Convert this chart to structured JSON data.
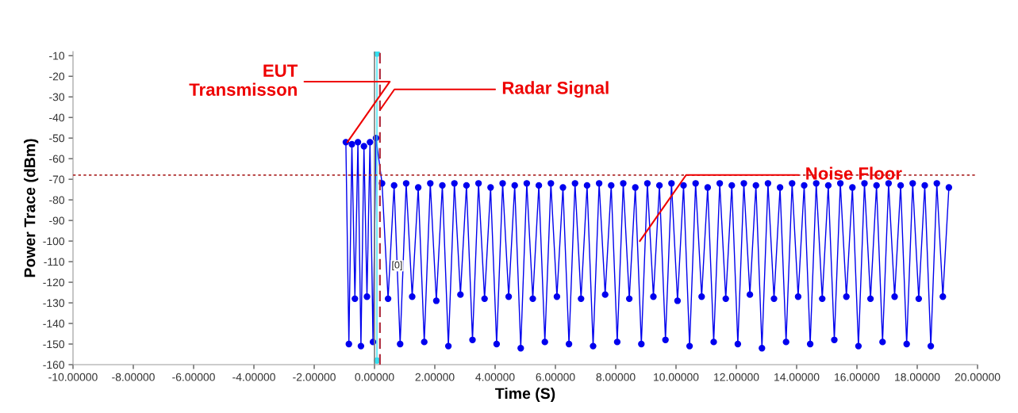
{
  "chart_data": {
    "type": "line",
    "xlabel": "Time (S)",
    "ylabel": "Power Trace (dBm)",
    "xlim": [
      -10,
      20
    ],
    "ylim": [
      -160,
      -8
    ],
    "xticks": [
      {
        "value": -10,
        "label": "-10.00000"
      },
      {
        "value": -8,
        "label": "-8.00000"
      },
      {
        "value": -6,
        "label": "-6.00000"
      },
      {
        "value": -4,
        "label": "-4.00000"
      },
      {
        "value": -2,
        "label": "-2.00000"
      },
      {
        "value": 0,
        "label": "0.00000"
      },
      {
        "value": 2,
        "label": "2.00000"
      },
      {
        "value": 4,
        "label": "4.00000"
      },
      {
        "value": 6,
        "label": "6.00000"
      },
      {
        "value": 8,
        "label": "8.00000"
      },
      {
        "value": 10,
        "label": "10.00000"
      },
      {
        "value": 12,
        "label": "12.00000"
      },
      {
        "value": 14,
        "label": "14.00000"
      },
      {
        "value": 16,
        "label": "16.00000"
      },
      {
        "value": 18,
        "label": "18.00000"
      },
      {
        "value": 20,
        "label": "20.00000"
      }
    ],
    "yticks": [
      -160,
      -150,
      -140,
      -130,
      -120,
      -110,
      -100,
      -90,
      -80,
      -70,
      -60,
      -50,
      -40,
      -30,
      -20,
      -10
    ],
    "marker": "circle",
    "grid": false,
    "legend": false,
    "series": [
      {
        "color": "#0000ee",
        "x": [
          -0.95,
          -0.85,
          -0.75,
          -0.65,
          -0.55,
          -0.45,
          -0.35,
          -0.25,
          -0.15,
          -0.05,
          0.05,
          0.25,
          0.45,
          0.65,
          0.85,
          1.05,
          1.25,
          1.45,
          1.65,
          1.85,
          2.05,
          2.25,
          2.45,
          2.65,
          2.85,
          3.05,
          3.25,
          3.45,
          3.65,
          3.85,
          4.05,
          4.25,
          4.45,
          4.65,
          4.85,
          5.05,
          5.25,
          5.45,
          5.65,
          5.85,
          6.05,
          6.25,
          6.45,
          6.65,
          6.85,
          7.05,
          7.25,
          7.45,
          7.65,
          7.85,
          8.05,
          8.25,
          8.45,
          8.65,
          8.85,
          9.05,
          9.25,
          9.45,
          9.65,
          9.85,
          10.05,
          10.25,
          10.45,
          10.65,
          10.85,
          11.05,
          11.25,
          11.45,
          11.65,
          11.85,
          12.05,
          12.25,
          12.45,
          12.65,
          12.85,
          13.05,
          13.25,
          13.45,
          13.65,
          13.85,
          14.05,
          14.25,
          14.45,
          14.65,
          14.85,
          15.05,
          15.25,
          15.45,
          15.65,
          15.85,
          16.05,
          16.25,
          16.45,
          16.65,
          16.85,
          17.05,
          17.25,
          17.45,
          17.65,
          17.85,
          18.05,
          18.25,
          18.45,
          18.65,
          18.85,
          19.05
        ],
        "values": [
          -52,
          -150,
          -53,
          -128,
          -52,
          -151,
          -54,
          -127,
          -52,
          -149,
          -50,
          -72,
          -128,
          -73,
          -150,
          -72,
          -127,
          -74,
          -149,
          -72,
          -129,
          -73,
          -151,
          -72,
          -126,
          -73,
          -148,
          -72,
          -128,
          -74,
          -150,
          -72,
          -127,
          -73,
          -152,
          -72,
          -128,
          -73,
          -149,
          -72,
          -127,
          -74,
          -150,
          -72,
          -128,
          -73,
          -151,
          -72,
          -126,
          -73,
          -149,
          -72,
          -128,
          -74,
          -150,
          -72,
          -127,
          -73,
          -148,
          -72,
          -129,
          -73,
          -151,
          -72,
          -127,
          -74,
          -149,
          -72,
          -128,
          -73,
          -150,
          -72,
          -126,
          -73,
          -152,
          -72,
          -128,
          -74,
          -149,
          -72,
          -127,
          -73,
          -150,
          -72,
          -128,
          -73,
          -148,
          -72,
          -127,
          -74,
          -151,
          -72,
          -128,
          -73,
          -149,
          -72,
          -127,
          -73,
          -150,
          -72,
          -128,
          -73,
          -151,
          -72,
          -127,
          -74
        ]
      },
      {
        "color": "#33e0f0",
        "x": [
          0.08,
          0.08
        ],
        "values": [
          -9,
          -158
        ]
      }
    ],
    "ref_lines": [
      {
        "axis": "x",
        "value": 0,
        "color": "#808080",
        "line_style": "solid"
      },
      {
        "axis": "x",
        "value": 0.18,
        "color": "#b03040",
        "line_style": "dashed"
      },
      {
        "axis": "y",
        "value": -68,
        "color": "#b03030",
        "line_style": "dotted"
      }
    ],
    "annotations": [
      {
        "text": "EUT\nTransmisson",
        "x": -0.9,
        "y": -52
      },
      {
        "text": "Radar Signal",
        "x": 0.2,
        "y": -36
      },
      {
        "text": "Noise Floor",
        "x": 8.8,
        "y": -100
      },
      {
        "text": "[0]",
        "x": 0.2,
        "y": -112
      }
    ]
  }
}
